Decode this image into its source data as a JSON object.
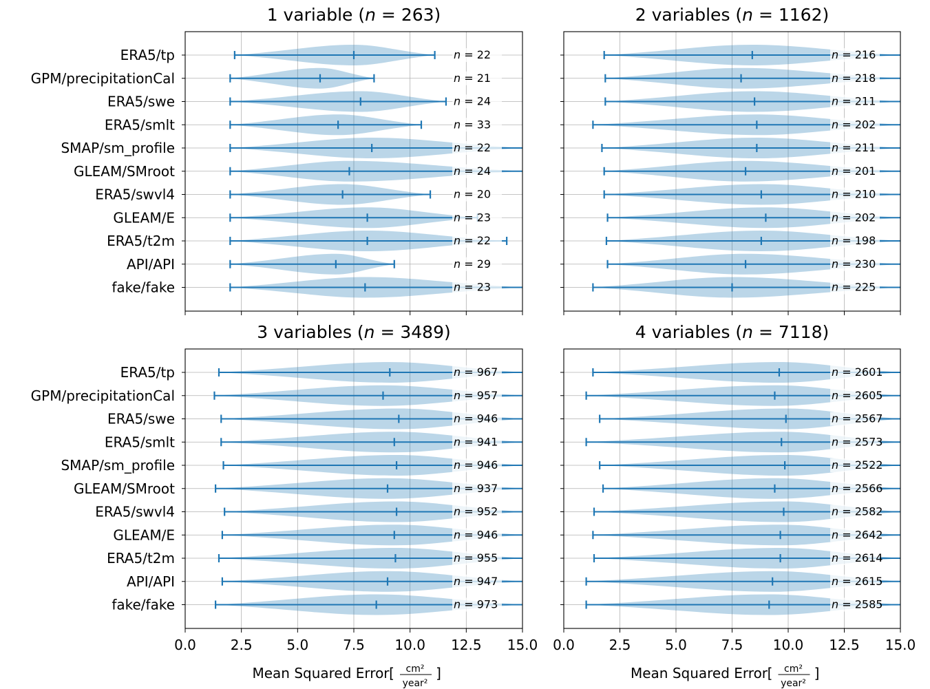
{
  "figure": {
    "colors": {
      "violin": "#1f77b4",
      "violin_alpha": 0.3,
      "grid": "#b0b0b0",
      "axis": "#000000"
    },
    "x_axis_label": "Mean Squared Error",
    "x_unit_numerator": "cm²",
    "x_unit_denominator": "year²"
  },
  "chart_data": [
    {
      "type": "violin",
      "orientation": "horizontal",
      "title_prefix": "1 variable (",
      "title_n": "263",
      "xlim": [
        0,
        15
      ],
      "xticks": [
        "0.0",
        "2.5",
        "5.0",
        "7.5",
        "10.0",
        "12.5",
        "15.0"
      ],
      "show_xticklabels": false,
      "show_yticklabels": true,
      "show_xlabel": false,
      "grid_x": true,
      "categories": [
        "ERA5/tp",
        "GPM/precipitationCal",
        "ERA5/swe",
        "ERA5/smlt",
        "SMAP/sm_profile",
        "GLEAM/SMroot",
        "ERA5/swvl4",
        "GLEAM/E",
        "ERA5/t2m",
        "API/API",
        "fake/fake"
      ],
      "min": [
        2.2,
        2.0,
        2.0,
        2.0,
        2.0,
        2.0,
        2.0,
        2.0,
        2.0,
        2.0,
        2.0
      ],
      "mean": [
        7.5,
        6.0,
        7.8,
        6.8,
        8.3,
        7.3,
        7.0,
        8.1,
        8.1,
        6.7,
        8.0
      ],
      "max": [
        11.1,
        8.4,
        11.6,
        10.5,
        15.0,
        15.0,
        10.9,
        13.0,
        14.3,
        9.3,
        15.0
      ],
      "counts": [
        "22",
        "21",
        "24",
        "33",
        "22",
        "24",
        "20",
        "23",
        "22",
        "29",
        "23"
      ]
    },
    {
      "type": "violin",
      "orientation": "horizontal",
      "title_prefix": "2 variables (",
      "title_n": "1162",
      "xlim": [
        0,
        15
      ],
      "xticks": [
        "0.0",
        "2.5",
        "5.0",
        "7.5",
        "10.0",
        "12.5",
        "15.0"
      ],
      "show_xticklabels": false,
      "show_yticklabels": false,
      "show_xlabel": false,
      "grid_x": true,
      "categories": [
        "ERA5/tp",
        "GPM/precipitationCal",
        "ERA5/swe",
        "ERA5/smlt",
        "SMAP/sm_profile",
        "GLEAM/SMroot",
        "ERA5/swvl4",
        "GLEAM/E",
        "ERA5/t2m",
        "API/API",
        "fake/fake"
      ],
      "min": [
        1.8,
        1.85,
        1.85,
        1.3,
        1.7,
        1.8,
        1.8,
        1.95,
        1.9,
        1.95,
        1.3
      ],
      "mean": [
        8.4,
        7.9,
        8.5,
        8.6,
        8.6,
        8.1,
        8.8,
        9.0,
        8.8,
        8.1,
        7.5
      ],
      "max": [
        15.0,
        15.0,
        15.0,
        15.0,
        15.0,
        15.0,
        15.0,
        15.0,
        15.0,
        15.0,
        15.0
      ],
      "counts": [
        "216",
        "218",
        "211",
        "202",
        "211",
        "201",
        "210",
        "202",
        "198",
        "230",
        "225"
      ]
    },
    {
      "type": "violin",
      "orientation": "horizontal",
      "title_prefix": "3 variables (",
      "title_n": "3489",
      "xlim": [
        0,
        15
      ],
      "xticks": [
        "0.0",
        "2.5",
        "5.0",
        "7.5",
        "10.0",
        "12.5",
        "15.0"
      ],
      "show_xticklabels": true,
      "show_yticklabels": true,
      "show_xlabel": true,
      "grid_x": true,
      "categories": [
        "ERA5/tp",
        "GPM/precipitationCal",
        "ERA5/swe",
        "ERA5/smlt",
        "SMAP/sm_profile",
        "GLEAM/SMroot",
        "ERA5/swvl4",
        "GLEAM/E",
        "ERA5/t2m",
        "API/API",
        "fake/fake"
      ],
      "min": [
        1.5,
        1.3,
        1.6,
        1.6,
        1.7,
        1.35,
        1.75,
        1.65,
        1.5,
        1.65,
        1.35
      ],
      "mean": [
        9.1,
        8.8,
        9.5,
        9.3,
        9.4,
        9.0,
        9.4,
        9.3,
        9.35,
        9.0,
        8.5
      ],
      "max": [
        15.0,
        15.0,
        15.0,
        15.0,
        15.0,
        15.0,
        15.0,
        15.0,
        15.0,
        15.0,
        15.0
      ],
      "counts": [
        "967",
        "957",
        "946",
        "941",
        "946",
        "937",
        "952",
        "946",
        "955",
        "947",
        "973"
      ]
    },
    {
      "type": "violin",
      "orientation": "horizontal",
      "title_prefix": "4 variables (",
      "title_n": "7118",
      "xlim": [
        0,
        15
      ],
      "xticks": [
        "0.0",
        "2.5",
        "5.0",
        "7.5",
        "10.0",
        "12.5",
        "15.0"
      ],
      "show_xticklabels": true,
      "show_yticklabels": false,
      "show_xlabel": true,
      "grid_x": true,
      "categories": [
        "ERA5/tp",
        "GPM/precipitationCal",
        "ERA5/swe",
        "ERA5/smlt",
        "SMAP/sm_profile",
        "GLEAM/SMroot",
        "ERA5/swvl4",
        "GLEAM/E",
        "ERA5/t2m",
        "API/API",
        "fake/fake"
      ],
      "min": [
        1.3,
        1.0,
        1.6,
        1.0,
        1.6,
        1.75,
        1.35,
        1.3,
        1.35,
        1.0,
        1.0
      ],
      "mean": [
        9.6,
        9.4,
        9.9,
        9.7,
        9.85,
        9.4,
        9.8,
        9.65,
        9.65,
        9.3,
        9.15
      ],
      "max": [
        15.0,
        15.0,
        15.0,
        15.0,
        15.0,
        15.0,
        15.0,
        15.0,
        15.0,
        15.0,
        15.0
      ],
      "counts": [
        "2601",
        "2605",
        "2567",
        "2573",
        "2522",
        "2566",
        "2582",
        "2642",
        "2614",
        "2615",
        "2585"
      ]
    }
  ]
}
